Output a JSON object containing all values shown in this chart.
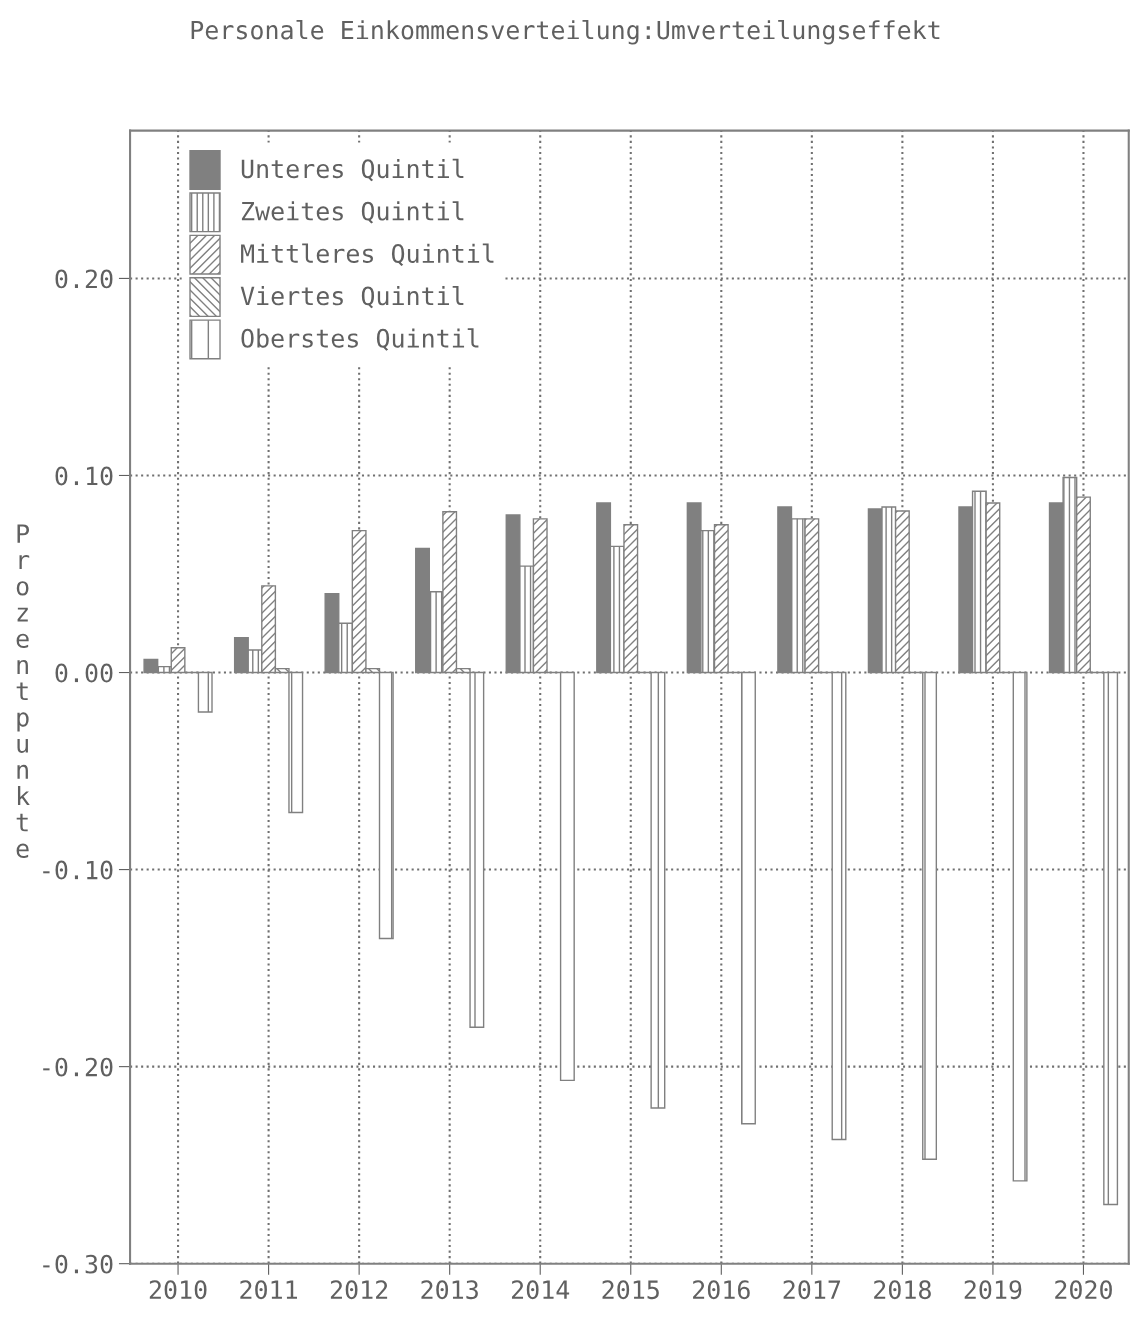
{
  "chart_data": {
    "type": "bar",
    "title": "Personale Einkommensverteilung:Umverteilungseffekt",
    "ylabel": "Prozentpunkte",
    "categories": [
      "2010",
      "2011",
      "2012",
      "2013",
      "2014",
      "2015",
      "2016",
      "2017",
      "2018",
      "2019",
      "2020"
    ],
    "series": [
      {
        "name": "Unteres Quintil",
        "color": "#808080",
        "values": [
          0.0066,
          0.0177,
          0.04,
          0.063,
          0.08,
          0.086,
          0.086,
          0.084,
          0.083,
          0.084,
          0.086
        ]
      },
      {
        "name": "Zweites Quintil",
        "color": "#808080",
        "values": [
          0.003,
          0.0114,
          0.025,
          0.041,
          0.054,
          0.064,
          0.072,
          0.078,
          0.084,
          0.092,
          0.099
        ]
      },
      {
        "name": "Mittleres Quintil",
        "color": "#808080",
        "values": [
          0.0126,
          0.044,
          0.072,
          0.0816,
          0.078,
          0.075,
          0.075,
          0.078,
          0.082,
          0.086,
          0.089
        ]
      },
      {
        "name": "Viertes Quintil",
        "color": "#808080",
        "values": [
          0,
          0.002,
          0.002,
          0.002,
          0,
          0,
          0,
          0,
          0,
          0,
          0
        ]
      },
      {
        "name": "Oberstes Quintil",
        "color": "#808080",
        "values": [
          -0.02,
          -0.071,
          -0.135,
          -0.18,
          -0.207,
          -0.221,
          -0.229,
          -0.237,
          -0.247,
          -0.258,
          -0.27
        ]
      }
    ],
    "ylim": [
      -0.3,
      0.275
    ],
    "yticks": [
      {
        "value": -0.3,
        "label": "-0.30"
      },
      {
        "value": -0.2,
        "label": "-0.20"
      },
      {
        "value": -0.1,
        "label": "-0.10"
      },
      {
        "value": 0.0,
        "label": "0.00"
      },
      {
        "value": 0.1,
        "label": "0.10"
      },
      {
        "value": 0.2,
        "label": "0.20"
      }
    ],
    "grid": true,
    "legend": "top left"
  }
}
